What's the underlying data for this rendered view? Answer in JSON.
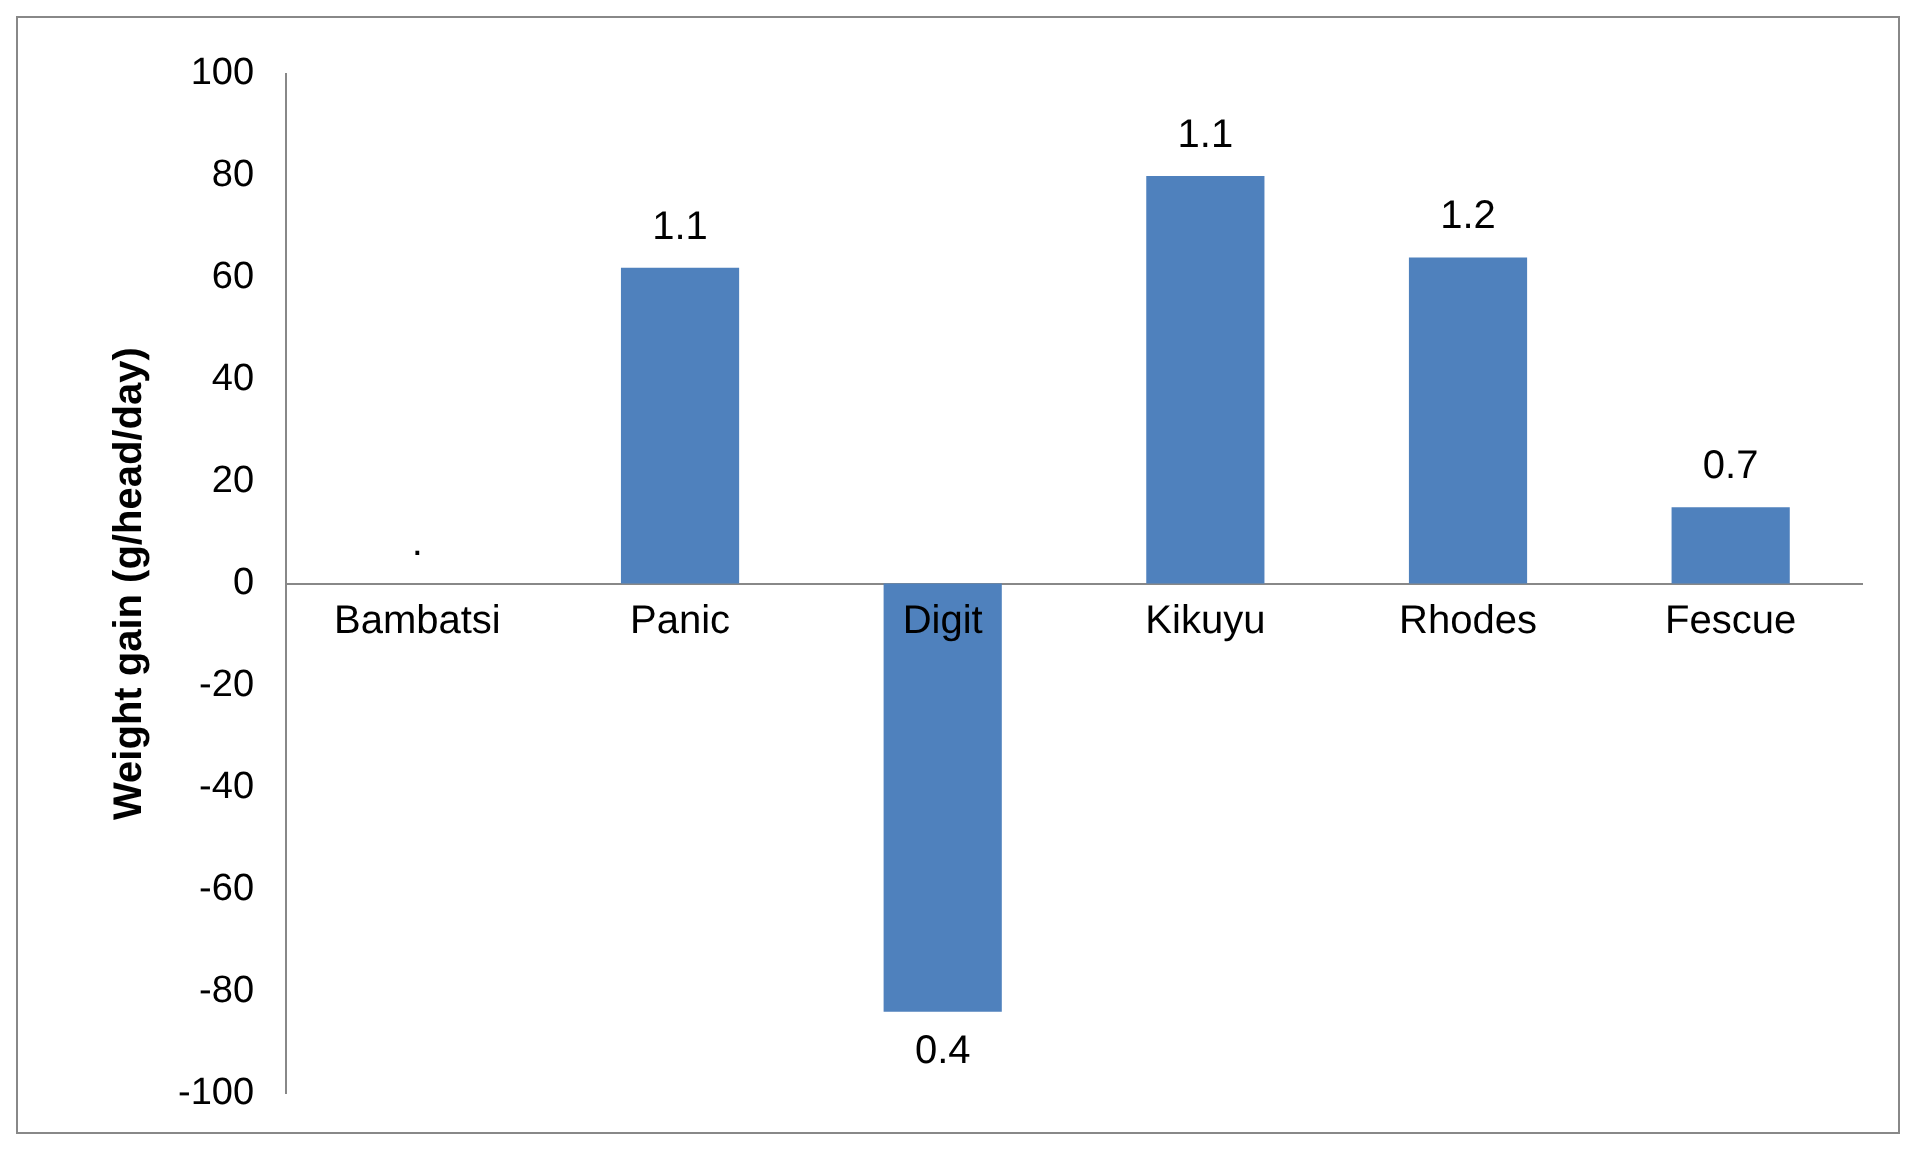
{
  "chart_data": {
    "type": "bar",
    "ylabel": "Weight gain (g/head/day)",
    "categories": [
      "Bambatsi",
      "Panic",
      "Digit",
      "Kikuyu",
      "Rhodes",
      "Fescue"
    ],
    "values": [
      0,
      62,
      -84,
      80,
      64,
      15
    ],
    "annotations": [
      {
        "text": ".",
        "x": "Bambatsi",
        "y": 0
      },
      {
        "text": "1.1",
        "x": "Panic",
        "y": 62
      },
      {
        "text": "0.4",
        "x": "Digit",
        "y": -84
      },
      {
        "text": "1.1",
        "x": "Kikuyu",
        "y": 80
      },
      {
        "text": "1.2",
        "x": "Rhodes",
        "y": 64
      },
      {
        "text": "0.7",
        "x": "Fescue",
        "y": 15
      }
    ],
    "color": "#4f81bd",
    "ylim": [
      -100,
      100
    ],
    "yticks": [
      -100,
      -80,
      -60,
      -40,
      -20,
      0,
      20,
      40,
      60,
      80,
      100
    ],
    "grid": false,
    "legend": false
  }
}
